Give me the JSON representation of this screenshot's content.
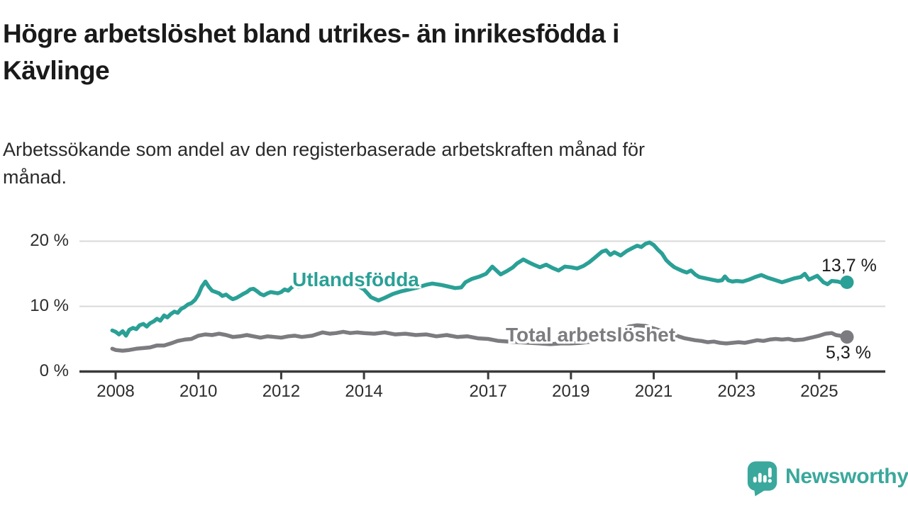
{
  "chart_data": {
    "type": "line",
    "title": "Högre arbetslöshet bland utrikes- än inrikesfödda i\nKävlinge",
    "subtitle": "Arbetssökande som andel av den registerbaserade arbetskraften månad för\nmånad.",
    "unit": "%",
    "grid": "horizontal",
    "x_range": [
      2007.9,
      2026.2
    ],
    "y_range": [
      0,
      21.7
    ],
    "x_ticks": [
      2008,
      2010,
      2012,
      2014,
      2017,
      2019,
      2021,
      2023,
      2025
    ],
    "y_ticks": [
      {
        "value": 0,
        "label": "0 %"
      },
      {
        "value": 10,
        "label": "10 %"
      },
      {
        "value": 20,
        "label": "20 %"
      }
    ],
    "series": [
      {
        "name": "Utlandsfödda",
        "color": "#2aa096",
        "end_value": 13.7,
        "end_label": "13,7 %",
        "points": [
          [
            2007.92,
            6.3
          ],
          [
            2008.0,
            6.1
          ],
          [
            2008.08,
            5.7
          ],
          [
            2008.17,
            6.2
          ],
          [
            2008.25,
            5.5
          ],
          [
            2008.33,
            6.4
          ],
          [
            2008.42,
            6.7
          ],
          [
            2008.5,
            6.5
          ],
          [
            2008.58,
            7.1
          ],
          [
            2008.67,
            7.3
          ],
          [
            2008.75,
            6.9
          ],
          [
            2008.83,
            7.4
          ],
          [
            2008.92,
            7.7
          ],
          [
            2009.0,
            8.1
          ],
          [
            2009.08,
            7.8
          ],
          [
            2009.17,
            8.6
          ],
          [
            2009.25,
            8.3
          ],
          [
            2009.33,
            8.8
          ],
          [
            2009.42,
            9.2
          ],
          [
            2009.5,
            9.0
          ],
          [
            2009.58,
            9.6
          ],
          [
            2009.67,
            9.9
          ],
          [
            2009.75,
            10.3
          ],
          [
            2009.83,
            10.5
          ],
          [
            2009.92,
            11.0
          ],
          [
            2010.0,
            11.8
          ],
          [
            2010.08,
            13.0
          ],
          [
            2010.17,
            13.8
          ],
          [
            2010.25,
            13.0
          ],
          [
            2010.33,
            12.4
          ],
          [
            2010.42,
            12.2
          ],
          [
            2010.5,
            12.0
          ],
          [
            2010.58,
            11.6
          ],
          [
            2010.67,
            11.8
          ],
          [
            2010.75,
            11.4
          ],
          [
            2010.83,
            11.1
          ],
          [
            2010.92,
            11.3
          ],
          [
            2011.0,
            11.6
          ],
          [
            2011.08,
            11.9
          ],
          [
            2011.17,
            12.2
          ],
          [
            2011.25,
            12.6
          ],
          [
            2011.33,
            12.7
          ],
          [
            2011.42,
            12.3
          ],
          [
            2011.5,
            11.9
          ],
          [
            2011.58,
            11.7
          ],
          [
            2011.67,
            12.0
          ],
          [
            2011.75,
            12.2
          ],
          [
            2011.83,
            12.1
          ],
          [
            2011.92,
            12.0
          ],
          [
            2012.0,
            12.2
          ],
          [
            2012.08,
            12.6
          ],
          [
            2012.17,
            12.4
          ],
          [
            2012.25,
            12.9
          ],
          [
            2012.33,
            13.2
          ],
          [
            2012.42,
            13.0
          ],
          [
            2012.5,
            13.4
          ],
          [
            2012.58,
            13.6
          ],
          [
            2012.67,
            13.5
          ],
          [
            2012.75,
            13.8
          ],
          [
            2012.83,
            13.7
          ],
          [
            2012.92,
            13.9
          ],
          [
            2013.0,
            14.0
          ],
          [
            2013.25,
            13.8
          ],
          [
            2013.5,
            13.9
          ],
          [
            2013.75,
            13.5
          ],
          [
            2014.0,
            12.6
          ],
          [
            2014.17,
            11.4
          ],
          [
            2014.35,
            10.9
          ],
          [
            2014.5,
            11.3
          ],
          [
            2014.7,
            11.9
          ],
          [
            2014.9,
            12.3
          ],
          [
            2015.1,
            12.6
          ],
          [
            2015.3,
            12.9
          ],
          [
            2015.5,
            13.3
          ],
          [
            2015.65,
            13.5
          ],
          [
            2015.85,
            13.3
          ],
          [
            2016.0,
            13.1
          ],
          [
            2016.2,
            12.8
          ],
          [
            2016.35,
            12.9
          ],
          [
            2016.45,
            13.7
          ],
          [
            2016.6,
            14.2
          ],
          [
            2016.8,
            14.6
          ],
          [
            2016.95,
            15.0
          ],
          [
            2017.1,
            16.1
          ],
          [
            2017.3,
            14.9
          ],
          [
            2017.45,
            15.4
          ],
          [
            2017.6,
            16.0
          ],
          [
            2017.7,
            16.6
          ],
          [
            2017.85,
            17.2
          ],
          [
            2018.0,
            16.7
          ],
          [
            2018.1,
            16.4
          ],
          [
            2018.25,
            16.0
          ],
          [
            2018.4,
            16.4
          ],
          [
            2018.55,
            15.9
          ],
          [
            2018.7,
            15.5
          ],
          [
            2018.85,
            16.1
          ],
          [
            2019.0,
            16.0
          ],
          [
            2019.15,
            15.8
          ],
          [
            2019.3,
            16.2
          ],
          [
            2019.45,
            16.8
          ],
          [
            2019.6,
            17.6
          ],
          [
            2019.75,
            18.4
          ],
          [
            2019.85,
            18.6
          ],
          [
            2019.95,
            17.9
          ],
          [
            2020.05,
            18.3
          ],
          [
            2020.2,
            17.8
          ],
          [
            2020.35,
            18.5
          ],
          [
            2020.5,
            19.0
          ],
          [
            2020.6,
            19.3
          ],
          [
            2020.7,
            19.1
          ],
          [
            2020.8,
            19.6
          ],
          [
            2020.9,
            19.8
          ],
          [
            2021.0,
            19.4
          ],
          [
            2021.1,
            18.7
          ],
          [
            2021.2,
            18.1
          ],
          [
            2021.3,
            17.1
          ],
          [
            2021.4,
            16.5
          ],
          [
            2021.5,
            16.0
          ],
          [
            2021.6,
            15.7
          ],
          [
            2021.7,
            15.4
          ],
          [
            2021.8,
            15.2
          ],
          [
            2021.9,
            15.5
          ],
          [
            2022.0,
            14.9
          ],
          [
            2022.1,
            14.5
          ],
          [
            2022.25,
            14.3
          ],
          [
            2022.4,
            14.1
          ],
          [
            2022.55,
            13.9
          ],
          [
            2022.65,
            14.0
          ],
          [
            2022.72,
            14.6
          ],
          [
            2022.8,
            14.0
          ],
          [
            2022.9,
            13.8
          ],
          [
            2023.0,
            13.9
          ],
          [
            2023.15,
            13.8
          ],
          [
            2023.3,
            14.1
          ],
          [
            2023.45,
            14.5
          ],
          [
            2023.6,
            14.8
          ],
          [
            2023.75,
            14.4
          ],
          [
            2023.9,
            14.1
          ],
          [
            2024.0,
            13.9
          ],
          [
            2024.1,
            13.7
          ],
          [
            2024.25,
            14.0
          ],
          [
            2024.4,
            14.3
          ],
          [
            2024.55,
            14.5
          ],
          [
            2024.65,
            15.0
          ],
          [
            2024.75,
            14.1
          ],
          [
            2024.95,
            14.7
          ],
          [
            2025.1,
            13.7
          ],
          [
            2025.2,
            13.4
          ],
          [
            2025.3,
            13.9
          ],
          [
            2025.45,
            13.8
          ],
          [
            2025.55,
            13.6
          ],
          [
            2025.67,
            13.7
          ]
        ]
      },
      {
        "name": "Total arbetslöshet",
        "color": "#7c7c80",
        "end_value": 5.3,
        "end_label": "5,3 %",
        "points": [
          [
            2007.92,
            3.5
          ],
          [
            2008.0,
            3.3
          ],
          [
            2008.17,
            3.2
          ],
          [
            2008.33,
            3.3
          ],
          [
            2008.5,
            3.5
          ],
          [
            2008.67,
            3.6
          ],
          [
            2008.83,
            3.7
          ],
          [
            2009.0,
            4.0
          ],
          [
            2009.17,
            4.0
          ],
          [
            2009.33,
            4.3
          ],
          [
            2009.5,
            4.7
          ],
          [
            2009.67,
            4.9
          ],
          [
            2009.83,
            5.0
          ],
          [
            2010.0,
            5.5
          ],
          [
            2010.17,
            5.7
          ],
          [
            2010.33,
            5.6
          ],
          [
            2010.5,
            5.8
          ],
          [
            2010.67,
            5.6
          ],
          [
            2010.83,
            5.3
          ],
          [
            2011.0,
            5.4
          ],
          [
            2011.17,
            5.6
          ],
          [
            2011.33,
            5.4
          ],
          [
            2011.5,
            5.2
          ],
          [
            2011.67,
            5.4
          ],
          [
            2011.83,
            5.3
          ],
          [
            2012.0,
            5.2
          ],
          [
            2012.17,
            5.4
          ],
          [
            2012.33,
            5.5
          ],
          [
            2012.5,
            5.3
          ],
          [
            2012.75,
            5.5
          ],
          [
            2013.0,
            6.0
          ],
          [
            2013.17,
            5.8
          ],
          [
            2013.33,
            5.9
          ],
          [
            2013.5,
            6.1
          ],
          [
            2013.67,
            5.9
          ],
          [
            2013.83,
            6.0
          ],
          [
            2014.0,
            5.9
          ],
          [
            2014.25,
            5.8
          ],
          [
            2014.5,
            6.0
          ],
          [
            2014.75,
            5.7
          ],
          [
            2015.0,
            5.8
          ],
          [
            2015.25,
            5.6
          ],
          [
            2015.5,
            5.7
          ],
          [
            2015.75,
            5.4
          ],
          [
            2016.0,
            5.6
          ],
          [
            2016.25,
            5.3
          ],
          [
            2016.5,
            5.4
          ],
          [
            2016.75,
            5.1
          ],
          [
            2017.0,
            5.0
          ],
          [
            2017.25,
            4.7
          ],
          [
            2017.5,
            4.6
          ],
          [
            2017.75,
            4.5
          ],
          [
            2018.0,
            4.4
          ],
          [
            2018.25,
            4.3
          ],
          [
            2018.5,
            4.2
          ],
          [
            2018.75,
            4.3
          ],
          [
            2019.0,
            4.3
          ],
          [
            2019.25,
            4.4
          ],
          [
            2019.5,
            4.6
          ],
          [
            2019.75,
            4.8
          ],
          [
            2020.0,
            5.1
          ],
          [
            2020.2,
            6.2
          ],
          [
            2020.4,
            6.9
          ],
          [
            2020.6,
            7.1
          ],
          [
            2020.8,
            7.0
          ],
          [
            2021.0,
            6.6
          ],
          [
            2021.25,
            6.1
          ],
          [
            2021.5,
            5.6
          ],
          [
            2021.75,
            5.1
          ],
          [
            2022.0,
            4.8
          ],
          [
            2022.15,
            4.7
          ],
          [
            2022.3,
            4.5
          ],
          [
            2022.45,
            4.6
          ],
          [
            2022.6,
            4.4
          ],
          [
            2022.75,
            4.3
          ],
          [
            2022.9,
            4.4
          ],
          [
            2023.05,
            4.5
          ],
          [
            2023.2,
            4.4
          ],
          [
            2023.35,
            4.6
          ],
          [
            2023.5,
            4.8
          ],
          [
            2023.65,
            4.7
          ],
          [
            2023.8,
            4.9
          ],
          [
            2023.95,
            5.0
          ],
          [
            2024.1,
            4.9
          ],
          [
            2024.25,
            5.0
          ],
          [
            2024.4,
            4.8
          ],
          [
            2024.6,
            4.9
          ],
          [
            2024.8,
            5.2
          ],
          [
            2025.0,
            5.5
          ],
          [
            2025.15,
            5.8
          ],
          [
            2025.3,
            5.9
          ],
          [
            2025.4,
            5.6
          ],
          [
            2025.5,
            5.5
          ],
          [
            2025.67,
            5.3
          ]
        ]
      }
    ]
  },
  "branding": {
    "logo_text": "Newsworthy",
    "color": "#3aa89c"
  }
}
